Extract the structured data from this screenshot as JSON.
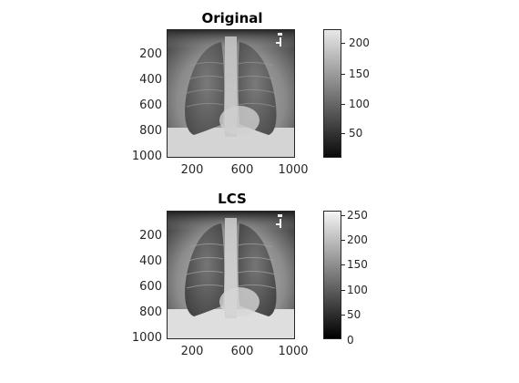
{
  "panels": [
    {
      "title": "Original",
      "y_ticks": [
        "200",
        "400",
        "600",
        "800",
        "1000"
      ],
      "x_ticks": [
        "200",
        "600",
        "1000"
      ],
      "colorbar_ticks": [
        "200",
        "150",
        "100",
        "50"
      ]
    },
    {
      "title": "LCS",
      "y_ticks": [
        "200",
        "400",
        "600",
        "800",
        "1000"
      ],
      "x_ticks": [
        "200",
        "600",
        "1000"
      ],
      "colorbar_ticks": [
        "250",
        "200",
        "150",
        "100",
        "50",
        "0"
      ]
    }
  ]
}
